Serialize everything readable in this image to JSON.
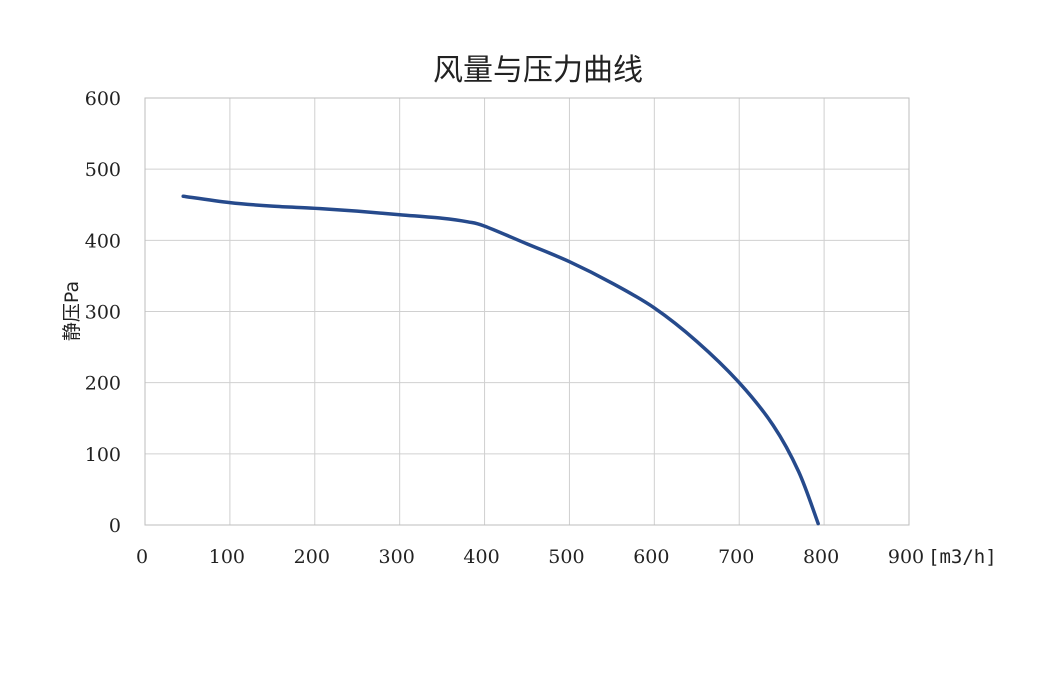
{
  "chart_data": {
    "type": "line",
    "title": "风量与压力曲线",
    "xlabel": "",
    "ylabel": "静压Pa",
    "x_unit": "[m3/h]",
    "xlim": [
      0,
      900
    ],
    "ylim": [
      0,
      600
    ],
    "x_ticks": [
      "0",
      "100",
      "200",
      "300",
      "400",
      "500",
      "600",
      "700",
      "800",
      "900"
    ],
    "y_ticks": [
      "0",
      "100",
      "200",
      "300",
      "400",
      "500",
      "600"
    ],
    "grid": true,
    "legend": "none",
    "series": [
      {
        "color": "#264a8c",
        "points": [
          [
            45,
            462
          ],
          [
            100,
            453
          ],
          [
            150,
            448
          ],
          [
            200,
            445
          ],
          [
            250,
            441
          ],
          [
            300,
            436
          ],
          [
            350,
            431
          ],
          [
            380,
            426
          ],
          [
            400,
            420
          ],
          [
            450,
            395
          ],
          [
            500,
            370
          ],
          [
            550,
            340
          ],
          [
            600,
            305
          ],
          [
            650,
            258
          ],
          [
            700,
            200
          ],
          [
            740,
            140
          ],
          [
            770,
            75
          ],
          [
            793,
            2
          ]
        ]
      }
    ]
  }
}
